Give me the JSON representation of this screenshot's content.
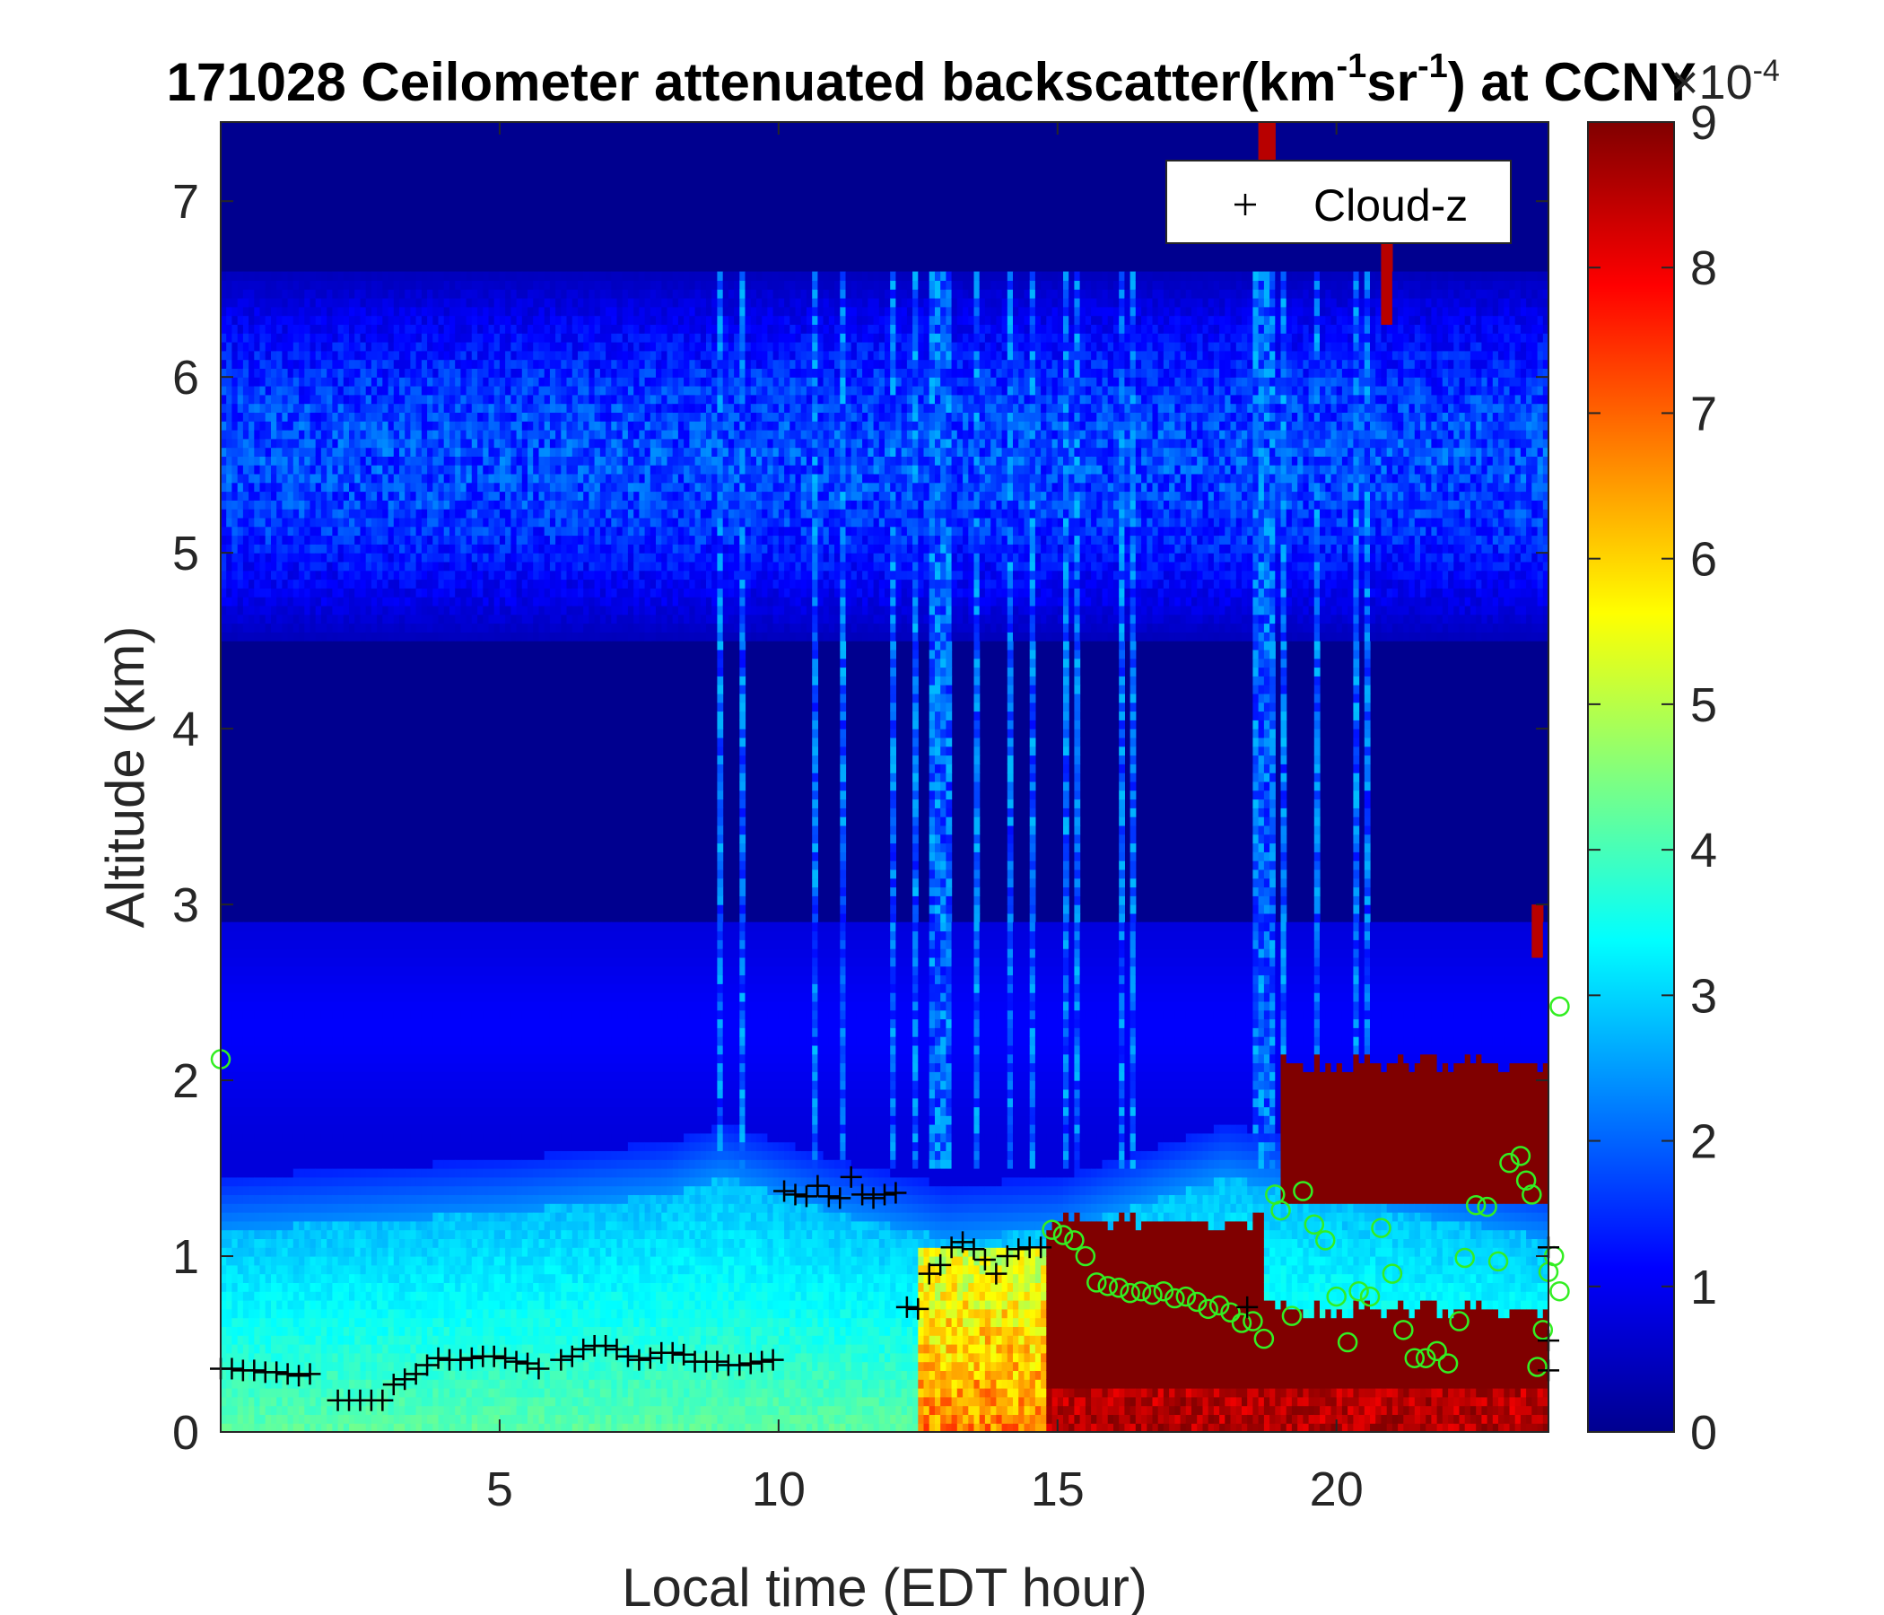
{
  "chart_data": {
    "type": "heatmap",
    "title": {
      "main": "171028 Ceilometer attenuated backscatter(km",
      "sup1": "-1",
      "mid": "sr",
      "sup2": "-1",
      "end": ") at CCNY"
    },
    "xlabel": "Local time (EDT hour)",
    "ylabel": "Altitude (km)",
    "xlim": [
      0,
      23.8
    ],
    "ylim": [
      0,
      7.45
    ],
    "xticks": [
      "5",
      "10",
      "15",
      "20"
    ],
    "yticks": [
      "0",
      "1",
      "2",
      "3",
      "4",
      "5",
      "6",
      "7"
    ],
    "colorbar": {
      "min": 0,
      "max": 9,
      "ticks": [
        "0",
        "1",
        "2",
        "3",
        "4",
        "5",
        "6",
        "7",
        "8",
        "9"
      ],
      "multiplier_base": "×10",
      "multiplier_exp": "-4",
      "colormap": "jet"
    },
    "legend": {
      "marker": "+",
      "label": "Cloud-z",
      "position": "top-right"
    },
    "cloud_z_series": {
      "name": "Cloud-z",
      "marker": "+",
      "color": "#000000",
      "points": [
        [
          0.0,
          0.36
        ],
        [
          0.2,
          0.36
        ],
        [
          0.4,
          0.35
        ],
        [
          0.6,
          0.35
        ],
        [
          0.8,
          0.34
        ],
        [
          1.0,
          0.34
        ],
        [
          1.2,
          0.33
        ],
        [
          1.4,
          0.32
        ],
        [
          1.6,
          0.33
        ],
        [
          2.1,
          0.18
        ],
        [
          2.3,
          0.18
        ],
        [
          2.5,
          0.18
        ],
        [
          2.7,
          0.18
        ],
        [
          2.9,
          0.18
        ],
        [
          3.1,
          0.27
        ],
        [
          3.3,
          0.3
        ],
        [
          3.5,
          0.33
        ],
        [
          3.7,
          0.38
        ],
        [
          3.9,
          0.42
        ],
        [
          4.1,
          0.41
        ],
        [
          4.3,
          0.41
        ],
        [
          4.5,
          0.42
        ],
        [
          4.7,
          0.43
        ],
        [
          4.9,
          0.43
        ],
        [
          5.1,
          0.42
        ],
        [
          5.3,
          0.4
        ],
        [
          5.5,
          0.39
        ],
        [
          5.7,
          0.36
        ],
        [
          6.1,
          0.41
        ],
        [
          6.3,
          0.43
        ],
        [
          6.5,
          0.47
        ],
        [
          6.7,
          0.49
        ],
        [
          6.9,
          0.49
        ],
        [
          7.1,
          0.47
        ],
        [
          7.3,
          0.43
        ],
        [
          7.5,
          0.41
        ],
        [
          7.7,
          0.42
        ],
        [
          7.9,
          0.45
        ],
        [
          8.1,
          0.45
        ],
        [
          8.3,
          0.44
        ],
        [
          8.5,
          0.4
        ],
        [
          8.7,
          0.4
        ],
        [
          8.9,
          0.4
        ],
        [
          9.1,
          0.38
        ],
        [
          9.3,
          0.38
        ],
        [
          9.5,
          0.39
        ],
        [
          9.7,
          0.4
        ],
        [
          9.9,
          0.41
        ],
        [
          10.1,
          1.37
        ],
        [
          10.3,
          1.35
        ],
        [
          10.5,
          1.34
        ],
        [
          10.7,
          1.4
        ],
        [
          10.9,
          1.34
        ],
        [
          11.1,
          1.33
        ],
        [
          11.3,
          1.45
        ],
        [
          11.5,
          1.35
        ],
        [
          11.7,
          1.33
        ],
        [
          11.9,
          1.35
        ],
        [
          12.1,
          1.36
        ],
        [
          12.3,
          0.71
        ],
        [
          12.5,
          0.7
        ],
        [
          12.7,
          0.9
        ],
        [
          12.9,
          0.95
        ],
        [
          13.1,
          1.05
        ],
        [
          13.3,
          1.08
        ],
        [
          13.5,
          1.04
        ],
        [
          13.7,
          0.98
        ],
        [
          13.9,
          0.9
        ],
        [
          14.1,
          1.0
        ],
        [
          14.3,
          1.04
        ],
        [
          14.5,
          1.05
        ],
        [
          14.7,
          1.05
        ],
        [
          18.4,
          0.71
        ],
        [
          23.8,
          1.05
        ],
        [
          23.8,
          0.52
        ],
        [
          23.8,
          0.35
        ]
      ]
    },
    "circle_series": {
      "marker": "o",
      "color": "#33ee22",
      "points": [
        [
          0.0,
          2.12
        ],
        [
          14.9,
          1.15
        ],
        [
          15.1,
          1.12
        ],
        [
          15.3,
          1.09
        ],
        [
          15.5,
          1.0
        ],
        [
          15.7,
          0.85
        ],
        [
          15.9,
          0.83
        ],
        [
          16.1,
          0.82
        ],
        [
          16.3,
          0.79
        ],
        [
          16.5,
          0.8
        ],
        [
          16.7,
          0.78
        ],
        [
          16.9,
          0.8
        ],
        [
          17.1,
          0.76
        ],
        [
          17.3,
          0.77
        ],
        [
          17.5,
          0.74
        ],
        [
          17.7,
          0.7
        ],
        [
          17.9,
          0.72
        ],
        [
          18.1,
          0.68
        ],
        [
          18.3,
          0.62
        ],
        [
          18.5,
          0.63
        ],
        [
          18.7,
          0.53
        ],
        [
          18.9,
          1.35
        ],
        [
          19.0,
          1.26
        ],
        [
          19.2,
          0.66
        ],
        [
          19.4,
          1.37
        ],
        [
          19.6,
          1.18
        ],
        [
          19.8,
          1.09
        ],
        [
          20.0,
          0.77
        ],
        [
          20.2,
          0.51
        ],
        [
          20.4,
          0.8
        ],
        [
          20.6,
          0.77
        ],
        [
          20.8,
          1.16
        ],
        [
          21.0,
          0.9
        ],
        [
          21.2,
          0.58
        ],
        [
          21.4,
          0.42
        ],
        [
          21.6,
          0.42
        ],
        [
          21.8,
          0.46
        ],
        [
          22.0,
          0.39
        ],
        [
          22.2,
          0.63
        ],
        [
          22.3,
          0.99
        ],
        [
          22.5,
          1.29
        ],
        [
          22.7,
          1.28
        ],
        [
          22.9,
          0.97
        ],
        [
          23.1,
          1.53
        ],
        [
          23.3,
          1.57
        ],
        [
          23.4,
          1.43
        ],
        [
          23.5,
          1.35
        ],
        [
          23.6,
          0.37
        ],
        [
          23.7,
          0.58
        ],
        [
          23.8,
          0.91
        ],
        [
          23.9,
          1.0
        ],
        [
          24.0,
          0.8
        ],
        [
          24.0,
          2.42
        ]
      ]
    },
    "field_description": {
      "low_boundary_layer_top_km": [
        [
          0,
          1.15
        ],
        [
          5,
          1.25
        ],
        [
          8,
          1.35
        ],
        [
          9,
          1.45
        ],
        [
          11,
          1.25
        ],
        [
          13,
          1.1
        ],
        [
          15,
          1.15
        ],
        [
          18,
          1.45
        ],
        [
          23.8,
          1.1
        ]
      ],
      "aerosol_layer_top_km": 2.9,
      "high_cloud_band_km": [
        4.5,
        6.6
      ],
      "saturated_cloud_regions": [
        {
          "x": [
            14.8,
            18.7
          ],
          "y": [
            0.0,
            1.2
          ],
          "value": 9
        },
        {
          "x": [
            18.7,
            23.8
          ],
          "y": [
            0.0,
            0.7
          ],
          "value": 9
        },
        {
          "x": [
            19.0,
            23.8
          ],
          "y": [
            1.3,
            2.1
          ],
          "value": 9
        }
      ]
    }
  }
}
